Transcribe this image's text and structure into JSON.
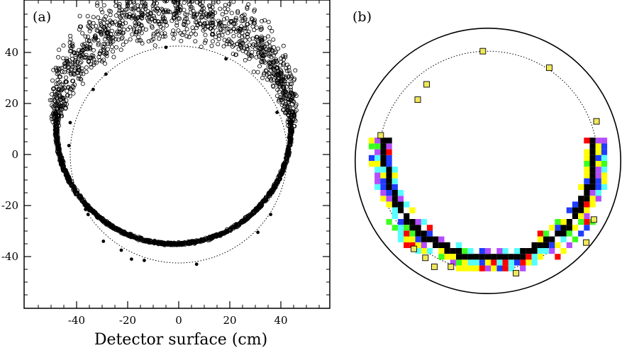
{
  "chart_data": [
    {
      "type": "scatter",
      "panel_label": "(a)",
      "xlabel": "Detector surface  (cm)",
      "xlim": [
        -60,
        60
      ],
      "ylim": [
        -60,
        60
      ],
      "x_ticks": [
        -40,
        -20,
        0,
        20,
        40
      ],
      "y_ticks": [
        40,
        20,
        0,
        -20,
        -40
      ],
      "x_tick_labels": [
        "-40",
        "-20",
        "0",
        "20",
        "40"
      ],
      "y_tick_labels": [
        "40",
        "20",
        "0",
        "-20",
        "-40"
      ],
      "dotted_circle": {
        "cx": 0,
        "cy": 0,
        "r": 42.5
      },
      "open_ring": {
        "center": [
          -2,
          11
        ],
        "radius": 46,
        "band_inner": 1.5,
        "band_outer_max": 14,
        "count": 2500
      },
      "filled_points": [
        [
          -5,
          42
        ],
        [
          18.5,
          37.5
        ],
        [
          -28.5,
          31.5
        ],
        [
          -33.5,
          25.5
        ],
        [
          38.5,
          16.5
        ],
        [
          -42.5,
          12.5
        ],
        [
          -43,
          3.5
        ],
        [
          -36.5,
          -21.5
        ],
        [
          -35.5,
          -23.5
        ],
        [
          36,
          -23.5
        ],
        [
          31,
          -30.5
        ],
        [
          -29.5,
          -34
        ],
        [
          -22.5,
          -37.5
        ],
        [
          -18.5,
          -41
        ],
        [
          -13.5,
          -41.5
        ],
        [
          7,
          -43
        ]
      ]
    },
    {
      "type": "heatmap",
      "panel_label": "(b)",
      "colors": {
        "black": "#000000",
        "red": "#ff0000",
        "blue": "#1f3cff",
        "green": "#3cff1f",
        "magenta": "#b44cff",
        "cyan": "#55ffff",
        "yellow": "#ffff00",
        "marker_fill": "#f0e85a"
      },
      "outer_circle": {
        "cx": 0,
        "cy": 0,
        "r": 52
      },
      "dotted_circle": {
        "cx": 0,
        "cy": 0,
        "r": 43
      },
      "ring_arc_deg": [
        -8,
        188
      ],
      "square_markers": [
        [
          -2,
          43
        ],
        [
          24,
          36.5
        ],
        [
          -24,
          30
        ],
        [
          -27.5,
          24
        ],
        [
          42.5,
          15.5
        ],
        [
          -42,
          10
        ],
        [
          41.5,
          -23
        ],
        [
          38.5,
          -32
        ],
        [
          -29,
          -34.5
        ],
        [
          -24.5,
          -38
        ],
        [
          -21,
          -41.5
        ],
        [
          -14.5,
          -41.5
        ],
        [
          11,
          -44
        ]
      ]
    }
  ]
}
